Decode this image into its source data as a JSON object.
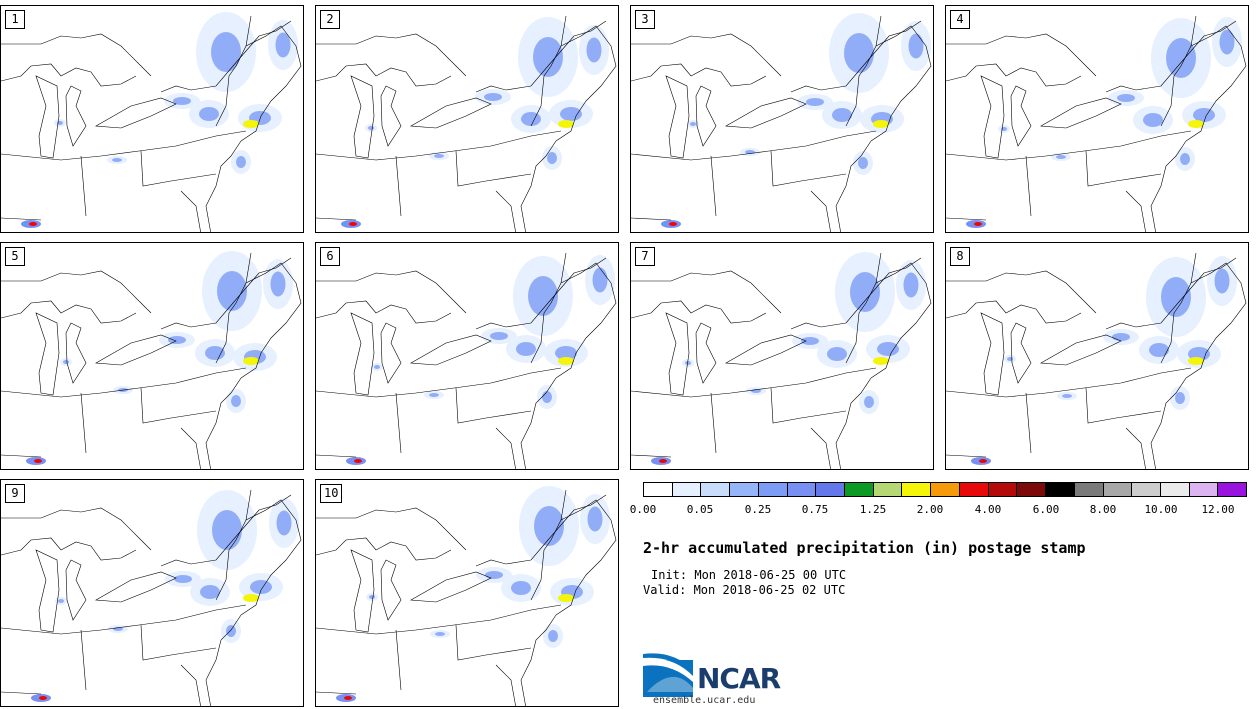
{
  "stamps": [
    {
      "label": "1"
    },
    {
      "label": "2"
    },
    {
      "label": "3"
    },
    {
      "label": "4"
    },
    {
      "label": "5"
    },
    {
      "label": "6"
    },
    {
      "label": "7"
    },
    {
      "label": "8"
    },
    {
      "label": "9"
    },
    {
      "label": "10"
    }
  ],
  "colorbar": {
    "colors": [
      "#ffffff",
      "#e6f0fe",
      "#c8dcfc",
      "#96b4f8",
      "#7d9cf6",
      "#7890f2",
      "#6478ea",
      "#0d9a24",
      "#b5d774",
      "#f5f50a",
      "#f59a0a",
      "#e80a0a",
      "#b50a0a",
      "#7d0a0a",
      "#000000",
      "#7a7a7a",
      "#a8a8a8",
      "#cdcdcd",
      "#ebebeb",
      "#dcb4f0",
      "#9a14e0"
    ],
    "tick_labels": [
      "0.00",
      "0.05",
      "0.25",
      "0.75",
      "1.25",
      "2.00",
      "4.00",
      "6.00",
      "8.00",
      "10.00",
      "12.00"
    ]
  },
  "title": "2-hr accumulated precipitation (in) postage stamp",
  "init": "Init: Mon 2018-06-25 00 UTC",
  "valid": "Valid: Mon 2018-06-25 02 UTC",
  "logo": {
    "text": "NCAR",
    "url": "ensemble.ucar.edu"
  }
}
